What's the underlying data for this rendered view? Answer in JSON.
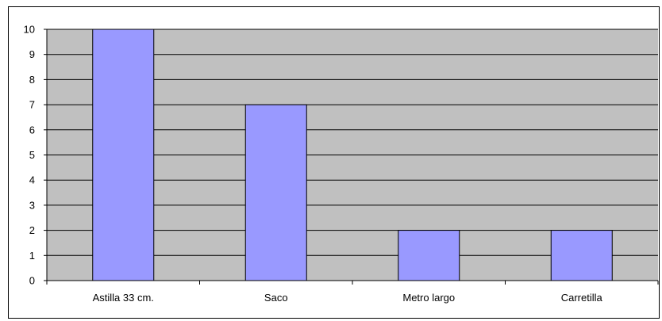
{
  "chart_data": {
    "type": "bar",
    "categories": [
      "Astilla 33 cm.",
      "Saco",
      "Metro largo",
      "Carretilla"
    ],
    "values": [
      10,
      7,
      2,
      2
    ],
    "title": "",
    "xlabel": "",
    "ylabel": "",
    "ylim": [
      0,
      10
    ],
    "yticks": [
      "0",
      "1",
      "2",
      "3",
      "4",
      "5",
      "6",
      "7",
      "8",
      "9",
      "10"
    ],
    "grid": true,
    "legend": "none",
    "colors": {
      "bar_fill": "#9999ff",
      "bar_stroke": "#000000",
      "plot_background": "#c0c0c0",
      "gridline": "#000000"
    }
  }
}
